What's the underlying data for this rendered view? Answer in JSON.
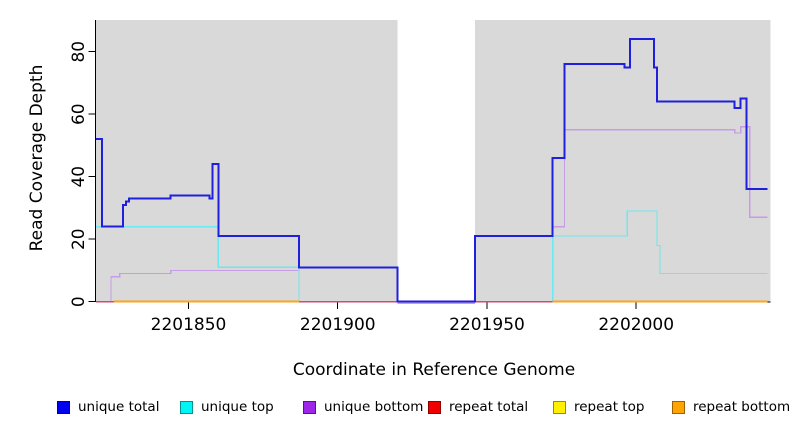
{
  "chart_data": {
    "type": "line",
    "subtype": "step-coverage",
    "title": "",
    "xlabel": "Coordinate in Reference Genome",
    "ylabel": "Read Coverage Depth",
    "xlim": [
      2201819,
      2202045
    ],
    "ylim": [
      0,
      90
    ],
    "x_ticks": [
      2201850,
      2201900,
      2201950,
      2202000
    ],
    "y_ticks": [
      0,
      20,
      40,
      60,
      80
    ],
    "grid": false,
    "plot_bg": "#d9d9d9",
    "no_data_region": [
      2201920,
      2201946
    ],
    "legend_position": "bottom",
    "series": [
      {
        "name": "unique total",
        "line_color": "#1f1fdd",
        "line_width": 2,
        "swatch": "#0000f0",
        "swatch_border": "#0000a0",
        "paths": [
          {
            "runs": [
              [
                2201819,
                2201821,
                52
              ],
              [
                2201821,
                2201828,
                24
              ],
              [
                2201828,
                2201829,
                31
              ],
              [
                2201829,
                2201830,
                32
              ],
              [
                2201830,
                2201844,
                33
              ],
              [
                2201844,
                2201857,
                34
              ],
              [
                2201857,
                2201858,
                33
              ],
              [
                2201858,
                2201860,
                44
              ],
              [
                2201860,
                2201887,
                21
              ],
              [
                2201887,
                2201920,
                11
              ],
              [
                2201920,
                2201946,
                0
              ],
              [
                2201946,
                2201972,
                21
              ],
              [
                2201972,
                2201976,
                46
              ],
              [
                2201976,
                2201996,
                76
              ],
              [
                2201996,
                2201998,
                75
              ],
              [
                2201998,
                2202006,
                84
              ],
              [
                2202006,
                2202007,
                75
              ],
              [
                2202007,
                2202033,
                64
              ],
              [
                2202033,
                2202035,
                62
              ],
              [
                2202035,
                2202037,
                65
              ],
              [
                2202037,
                2202044,
                36
              ]
            ]
          }
        ]
      },
      {
        "name": "unique top",
        "line_color": "#6ce8f0",
        "line_width": 1.3,
        "swatch": "#00f5f5",
        "swatch_border": "#009090",
        "paths": [
          {
            "runs": [
              [
                2201819,
                2201860,
                24
              ],
              [
                2201860,
                2201887,
                11
              ],
              [
                2201887,
                2201920,
                0
              ]
            ]
          },
          {
            "runs": [
              [
                2201946,
                2201972,
                0
              ],
              [
                2201972,
                2201997,
                21
              ],
              [
                2201997,
                2202007,
                29
              ],
              [
                2202007,
                2202008,
                18
              ],
              [
                2202008,
                2202044,
                9
              ]
            ]
          }
        ]
      },
      {
        "name": "unique bottom",
        "line_color": "#c79ce6",
        "line_width": 1.3,
        "swatch": "#9c27e8",
        "swatch_border": "#5a1090",
        "paths": [
          {
            "runs": [
              [
                2201819,
                2201824,
                0
              ],
              [
                2201824,
                2201827,
                8
              ],
              [
                2201827,
                2201844,
                9
              ],
              [
                2201844,
                2201887,
                10
              ],
              [
                2201887,
                2201920,
                0
              ]
            ]
          },
          {
            "runs": [
              [
                2201920,
                2201946,
                0
              ]
            ],
            "dy": 1.4
          },
          {
            "runs": [
              [
                2201946,
                2201972,
                0
              ],
              [
                2201972,
                2201976,
                24
              ],
              [
                2201976,
                2202033,
                55
              ],
              [
                2202033,
                2202035,
                54
              ],
              [
                2202035,
                2202038,
                56
              ],
              [
                2202038,
                2202044,
                27
              ]
            ]
          }
        ]
      },
      {
        "name": "repeat total",
        "line_color": "#d14a73",
        "line_width": 1.5,
        "swatch": "#f00000",
        "swatch_border": "#900000",
        "paths": [
          {
            "runs": [
              [
                2201819,
                2201920,
                0
              ]
            ]
          },
          {
            "runs": [
              [
                2201946,
                2202044,
                0
              ]
            ]
          }
        ]
      },
      {
        "name": "repeat top",
        "line_color": "#ffee00",
        "line_width": 1.3,
        "swatch": "#fff000",
        "swatch_border": "#909000",
        "paths": [
          {
            "runs": [
              [
                2201825,
                2201887,
                0
              ]
            ]
          },
          {
            "runs": [
              [
                2201972,
                2202044,
                0
              ]
            ]
          }
        ]
      },
      {
        "name": "repeat bottom",
        "line_color": "#ffa41e",
        "line_width": 2,
        "swatch": "#ffa500",
        "swatch_border": "#a06000",
        "paths": [
          {
            "runs": [
              [
                2201825,
                2201887,
                0
              ]
            ]
          },
          {
            "runs": [
              [
                2201972,
                2202044,
                0
              ]
            ]
          }
        ]
      }
    ]
  },
  "legend": {
    "items": [
      {
        "label": "unique total"
      },
      {
        "label": "unique top"
      },
      {
        "label": "unique bottom"
      },
      {
        "label": "repeat total"
      },
      {
        "label": "repeat top"
      },
      {
        "label": "repeat bottom"
      }
    ]
  }
}
